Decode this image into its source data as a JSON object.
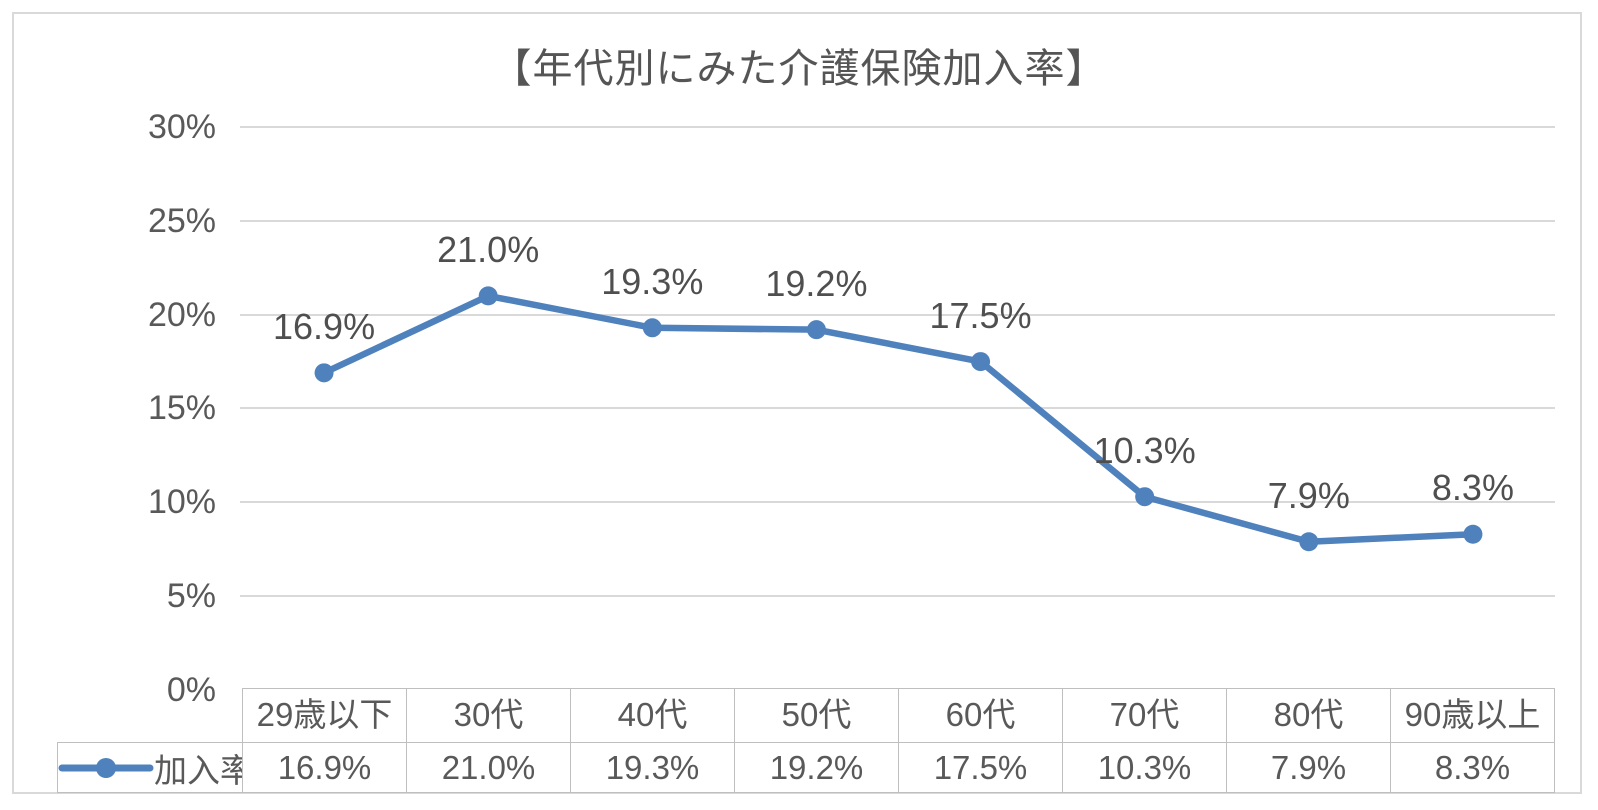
{
  "chart": {
    "title": "【年代別にみた介護保険加入率】",
    "accent_color": "#4F81BD",
    "text_color": "#595959",
    "gridline_color": "#D9D9D9",
    "table_border_color": "#BFBFBF",
    "frame_border_color": "#D9D9D9"
  },
  "chart_data": {
    "type": "line",
    "title": "【年代別にみた介護保険加入率】",
    "categories": [
      "29歳以下",
      "30代",
      "40代",
      "50代",
      "60代",
      "70代",
      "80代",
      "90歳以上"
    ],
    "series": [
      {
        "name": "加入率",
        "values": [
          16.9,
          21.0,
          19.3,
          19.2,
          17.5,
          10.3,
          7.9,
          8.3
        ],
        "labels": [
          "16.9%",
          "21.0%",
          "19.3%",
          "19.2%",
          "17.5%",
          "10.3%",
          "7.9%",
          "8.3%"
        ]
      }
    ],
    "y_axis": {
      "ticks": [
        "0%",
        "5%",
        "10%",
        "15%",
        "20%",
        "25%",
        "30%"
      ],
      "min": 0,
      "max": 30,
      "unit": "%"
    },
    "grid": true,
    "legend": {
      "entries": [
        "加入率"
      ],
      "position": "data-table-left"
    },
    "data_table": true,
    "marker": "circle"
  }
}
